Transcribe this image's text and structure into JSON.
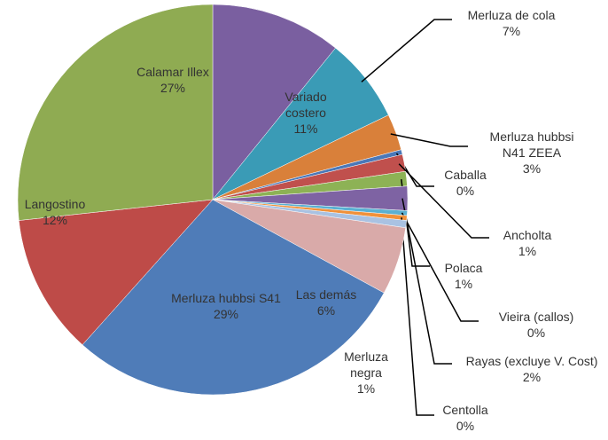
{
  "chart_data": {
    "type": "pie",
    "categories": [
      "Variado costero",
      "Merluza de cola",
      "Merluza hubbsi N41 ZEEA",
      "Caballa",
      "Ancholta",
      "Polaca",
      "Rayas (excluye V. Cost)",
      "Vieira (callos)",
      "Centolla",
      "Merluza negra",
      "Las demás",
      "Merluza hubbsi S41",
      "Langostino",
      "Calamar Illex"
    ],
    "values": [
      10.8,
      7,
      3,
      0.4,
      1.4,
      1.2,
      2,
      0.4,
      0.4,
      0.6,
      5.6,
      28.6,
      11.6,
      26.6
    ],
    "value_labels": [
      "11%",
      "7%",
      "3%",
      "0%",
      "1%",
      "1%",
      "2%",
      "0%",
      "0%",
      "1%",
      "6%",
      "29%",
      "12%",
      "27%"
    ],
    "colors": [
      "#7a5fa0",
      "#3a9bb6",
      "#d9803a",
      "#4a78b8",
      "#c0504d",
      "#8db255",
      "#7e63a3",
      "#5ab0d2",
      "#f0913a",
      "#a9c2e2",
      "#d9aaa9",
      "#4f7cb8",
      "#be4b48",
      "#8fab52"
    ]
  }
}
